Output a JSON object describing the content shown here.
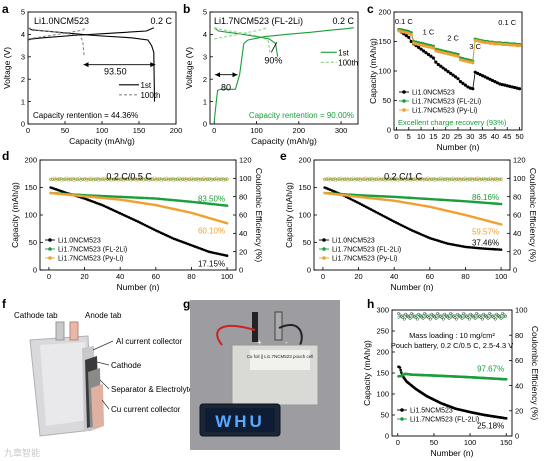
{
  "panel_letters": [
    "a",
    "b",
    "c",
    "d",
    "e",
    "f",
    "g",
    "h"
  ],
  "watermark": "九章智能",
  "chart_data": [
    {
      "id": "a",
      "type": "line",
      "title": "Li1.0NCM523",
      "rate": "0.2 C",
      "xlabel": "Capacity (mAh/g)",
      "ylabel": "Voltage (V)",
      "xlim": [
        0,
        200
      ],
      "ylim": [
        0,
        5
      ],
      "xticks": [
        0,
        50,
        100,
        150,
        200
      ],
      "yticks": [
        0,
        1,
        2,
        3,
        4,
        5
      ],
      "legend": [
        "1st",
        "100th"
      ],
      "legend_loc": "right",
      "annotations": [
        {
          "text": "93.50"
        },
        {
          "text": "Capacity rentention = 44.36%"
        }
      ],
      "series": [
        {
          "name": "1st",
          "color": "#000000",
          "dash": false,
          "charge": [
            [
              0,
              3.75
            ],
            [
              5,
              3.8
            ],
            [
              20,
              3.85
            ],
            [
              60,
              3.95
            ],
            [
              110,
              4.05
            ],
            [
              160,
              4.15
            ],
            [
              170,
              4.3
            ]
          ],
          "discharge": [
            [
              0,
              4.3
            ],
            [
              5,
              4.2
            ],
            [
              40,
              4.1
            ],
            [
              90,
              3.95
            ],
            [
              140,
              3.85
            ],
            [
              162,
              3.75
            ],
            [
              167,
              3.5
            ],
            [
              170,
              3.2
            ],
            [
              171,
              1.0
            ]
          ]
        },
        {
          "name": "100th",
          "color": "#888888",
          "dash": true,
          "charge": [
            [
              0,
              3.8
            ],
            [
              20,
              3.9
            ],
            [
              50,
              4.05
            ],
            [
              75,
              4.2
            ],
            [
              77,
              4.3
            ]
          ],
          "discharge": [
            [
              0,
              4.3
            ],
            [
              10,
              4.2
            ],
            [
              40,
              4.1
            ],
            [
              70,
              3.95
            ],
            [
              74,
              3.7
            ],
            [
              76,
              3.0
            ]
          ]
        }
      ]
    },
    {
      "id": "b",
      "type": "line",
      "title": "Li1.7NCM523 (FL-2Li)",
      "rate": "0.2 C",
      "xlabel": "Capacity (mAh/g)",
      "ylabel": "Voltage (V)",
      "xlim": [
        -10,
        340
      ],
      "ylim": [
        0,
        5
      ],
      "xticks": [
        0,
        100,
        200,
        300
      ],
      "yticks": [
        0,
        1,
        2,
        3,
        4,
        5
      ],
      "legend": [
        "1st",
        "100th"
      ],
      "legend_loc": "right",
      "annotations": [
        {
          "text": "80"
        },
        {
          "text": "90%"
        },
        {
          "text": "Capacity rentention = 90.00%"
        }
      ],
      "series": [
        {
          "name": "1st",
          "color": "#1a9e3a",
          "dash": false,
          "charge": [
            [
              0,
              0.1
            ],
            [
              5,
              1.0
            ],
            [
              8,
              1.5
            ],
            [
              15,
              1.55
            ],
            [
              50,
              1.55
            ],
            [
              60,
              2.2
            ],
            [
              70,
              3.6
            ],
            [
              80,
              3.75
            ],
            [
              120,
              3.9
            ],
            [
              170,
              4.0
            ],
            [
              230,
              4.1
            ],
            [
              280,
              4.2
            ],
            [
              310,
              4.25
            ],
            [
              330,
              4.3
            ]
          ],
          "discharge": [
            [
              0,
              4.3
            ],
            [
              10,
              4.15
            ],
            [
              50,
              4.05
            ],
            [
              100,
              3.9
            ],
            [
              130,
              3.8
            ],
            [
              145,
              3.6
            ],
            [
              150,
              3.0
            ]
          ]
        },
        {
          "name": "100th",
          "color": "#8fd18f",
          "dash": true,
          "charge": [
            [
              0,
              3.8
            ],
            [
              30,
              3.9
            ],
            [
              70,
              4.05
            ],
            [
              110,
              4.2
            ],
            [
              125,
              4.3
            ]
          ],
          "discharge": [
            [
              0,
              4.3
            ],
            [
              20,
              4.2
            ],
            [
              70,
              4.05
            ],
            [
              110,
              3.9
            ],
            [
              128,
              3.7
            ],
            [
              132,
              3.1
            ]
          ]
        }
      ]
    },
    {
      "id": "c",
      "type": "scatter",
      "xlabel": "Number (n)",
      "ylabel": "Capacity (mAh/g)",
      "xlim": [
        -1,
        51
      ],
      "ylim": [
        0,
        200
      ],
      "xticks": [
        0,
        5,
        10,
        15,
        20,
        25,
        30,
        35,
        40,
        45,
        50
      ],
      "yticks": [
        0,
        50,
        100,
        150,
        200
      ],
      "rate_labels": [
        "0.1 C",
        "1 C",
        "2 C",
        "3 C",
        "0.1 C"
      ],
      "legend_loc": "lower-left",
      "annotations": [
        {
          "text": "Excellent charge recovery (93%)"
        }
      ],
      "series": [
        {
          "name": "Li1.0NCM523",
          "color": "#000000",
          "start": 1,
          "values": [
            170,
            166,
            163,
            160,
            157,
            150,
            146,
            143,
            140,
            137,
            134,
            131,
            128,
            125,
            122,
            115,
            111,
            108,
            105,
            102,
            99,
            96,
            93,
            90,
            87,
            82,
            79,
            76,
            73,
            71,
            70,
            98,
            96,
            94,
            92,
            90,
            88,
            86,
            84,
            82,
            80,
            78,
            77,
            76,
            75,
            74,
            73,
            72,
            71,
            70
          ]
        },
        {
          "name": "Li1.7NCM523 (FL-2Li)",
          "color": "#1a9e3a",
          "start": 1,
          "values": [
            170,
            170,
            169,
            168,
            167,
            165,
            150,
            149,
            148,
            147,
            146,
            145,
            144,
            143,
            142,
            137,
            136,
            135,
            134,
            133,
            132,
            131,
            130,
            129,
            128,
            122,
            121,
            120,
            119,
            118,
            117,
            154,
            153,
            152,
            151,
            150,
            150,
            149,
            149,
            148,
            148,
            148,
            147,
            147,
            147,
            146,
            146,
            146,
            145,
            145
          ]
        },
        {
          "name": "Li1.7NCM523 (Py-Li)",
          "color": "#f0a030",
          "start": 1,
          "values": [
            168,
            167,
            166,
            165,
            164,
            162,
            147,
            146,
            145,
            144,
            143,
            142,
            141,
            140,
            139,
            134,
            133,
            132,
            131,
            130,
            129,
            128,
            127,
            126,
            125,
            119,
            118,
            117,
            116,
            115,
            114,
            152,
            151,
            150,
            149,
            148,
            148,
            147,
            147,
            146,
            146,
            146,
            145,
            145,
            145,
            144,
            144,
            144,
            143,
            143
          ]
        }
      ]
    },
    {
      "id": "d",
      "type": "scatter",
      "rate": "0.2 C/0.5 C",
      "xlabel": "Number (n)",
      "ylabel": "Capacity (mAh/g)",
      "y2label": "Coulombic Efficiency (%)",
      "xlim": [
        -5,
        105
      ],
      "ylim": [
        0,
        200
      ],
      "y2lim": [
        0,
        120
      ],
      "xticks": [
        0,
        20,
        40,
        60,
        80,
        100
      ],
      "yticks": [
        0,
        50,
        100,
        150,
        200
      ],
      "y2ticks": [
        0,
        20,
        40,
        60,
        80,
        100,
        120
      ],
      "legend_loc": "lower-left",
      "retention": [
        {
          "series": "Li1.7NCM523 (FL-2Li)",
          "text": "83.50%"
        },
        {
          "series": "Li1.7NCM523 (Py-Li)",
          "text": "60.10%"
        },
        {
          "series": "Li1.0NCM523",
          "text": "17.15%"
        }
      ],
      "series": [
        {
          "name": "Li1.0NCM523",
          "color": "#000000",
          "anchors": [
            [
              1,
              150
            ],
            [
              10,
              140
            ],
            [
              20,
              130
            ],
            [
              30,
              118
            ],
            [
              40,
              103
            ],
            [
              50,
              88
            ],
            [
              60,
              72
            ],
            [
              70,
              57
            ],
            [
              80,
              45
            ],
            [
              90,
              33
            ],
            [
              100,
              26
            ]
          ]
        },
        {
          "name": "Li1.7NCM523 (FL-2Li)",
          "color": "#1a9e3a",
          "anchors": [
            [
              1,
              140
            ],
            [
              20,
              136
            ],
            [
              40,
              133
            ],
            [
              60,
              130
            ],
            [
              80,
              124
            ],
            [
              100,
              117
            ]
          ]
        },
        {
          "name": "Li1.7NCM523 (Py-Li)",
          "color": "#f0a030",
          "anchors": [
            [
              1,
              140
            ],
            [
              20,
              134
            ],
            [
              40,
              128
            ],
            [
              60,
              118
            ],
            [
              80,
              104
            ],
            [
              100,
              85
            ]
          ]
        }
      ],
      "ce": 99
    },
    {
      "id": "e",
      "type": "scatter",
      "rate": "0.2 C/1 C",
      "xlabel": "Number (n)",
      "ylabel": "Capacity (mAh/g)",
      "y2label": "Coulombic Efficiency (%)",
      "xlim": [
        -5,
        105
      ],
      "ylim": [
        0,
        200
      ],
      "y2lim": [
        0,
        120
      ],
      "xticks": [
        0,
        20,
        40,
        60,
        80,
        100
      ],
      "yticks": [
        0,
        50,
        100,
        150,
        200
      ],
      "y2ticks": [
        0,
        20,
        40,
        60,
        80,
        100,
        120
      ],
      "legend_loc": "lower-left",
      "retention": [
        {
          "series": "Li1.7NCM523 (FL-2Li)",
          "text": "86.16%"
        },
        {
          "series": "Li1.7NCM523 (Py-Li)",
          "text": "59.57%"
        },
        {
          "series": "Li1.0NCM523",
          "text": "37.46%"
        }
      ],
      "series": [
        {
          "name": "Li1.0NCM523",
          "color": "#000000",
          "anchors": [
            [
              1,
              150
            ],
            [
              10,
              138
            ],
            [
              20,
              122
            ],
            [
              30,
              105
            ],
            [
              40,
              88
            ],
            [
              50,
              72
            ],
            [
              60,
              58
            ],
            [
              70,
              48
            ],
            [
              80,
              42
            ],
            [
              90,
              39
            ],
            [
              100,
              37
            ]
          ]
        },
        {
          "name": "Li1.7NCM523 (FL-2Li)",
          "color": "#1a9e3a",
          "anchors": [
            [
              1,
              140
            ],
            [
              20,
              136
            ],
            [
              40,
              133
            ],
            [
              60,
              129
            ],
            [
              80,
              125
            ],
            [
              100,
              120
            ]
          ]
        },
        {
          "name": "Li1.7NCM523 (Py-Li)",
          "color": "#f0a030",
          "anchors": [
            [
              1,
              140
            ],
            [
              20,
              133
            ],
            [
              40,
              126
            ],
            [
              60,
              115
            ],
            [
              80,
              100
            ],
            [
              100,
              83
            ]
          ]
        }
      ],
      "ce": 99
    },
    {
      "id": "h",
      "type": "scatter",
      "xlabel": "Number (n)",
      "ylabel": "Capacity (mAh/g)",
      "y2label": "Coulombic Efficiency (%)",
      "xlim": [
        -8,
        158
      ],
      "ylim": [
        0,
        300
      ],
      "y2lim": [
        0,
        100
      ],
      "xticks": [
        0,
        50,
        100,
        150
      ],
      "yticks": [
        0,
        50,
        100,
        150,
        200,
        250,
        300
      ],
      "y2ticks": [
        0,
        20,
        40,
        60,
        80,
        100
      ],
      "legend_loc": "lower-left",
      "annotations": [
        {
          "text": "Mass loading : 10 mg/cm²"
        },
        {
          "text": "Pouch battery, 0.2 C/0.5 C, 2.5-4.3 V"
        }
      ],
      "retention": [
        {
          "series": "Li1.7NCM523 (FL-2Li)",
          "text": "97.67%"
        },
        {
          "series": "Li1.5NCM523",
          "text": "25.18%"
        }
      ],
      "series": [
        {
          "name": "Li1.5NCM523",
          "color": "#000000",
          "anchors": [
            [
              1,
              165
            ],
            [
              3,
              163
            ],
            [
              6,
              145
            ],
            [
              12,
              130
            ],
            [
              25,
              112
            ],
            [
              40,
              95
            ],
            [
              60,
              78
            ],
            [
              80,
              65
            ],
            [
              100,
              57
            ],
            [
              120,
              50
            ],
            [
              150,
              42
            ]
          ]
        },
        {
          "name": "Li1.7NCM523 (FL-2Li)",
          "color": "#1a9e3a",
          "anchors": [
            [
              1,
              142
            ],
            [
              5,
              143
            ],
            [
              10,
              148
            ],
            [
              20,
              146
            ],
            [
              50,
              144
            ],
            [
              100,
              140
            ],
            [
              150,
              135
            ]
          ]
        }
      ],
      "ce_main": 95
    }
  ],
  "panel_f": {
    "labels": [
      "Cathode tab",
      "Anode tab",
      "Al current collector",
      "Cathode",
      "Separator & Electrolyte",
      "Cu current collector"
    ]
  },
  "panel_g": {
    "pouch_label": "Cu foil || Li1.7NCM523 pouch cell",
    "terminals": [
      "+",
      "-"
    ],
    "led_text": "WHU"
  }
}
